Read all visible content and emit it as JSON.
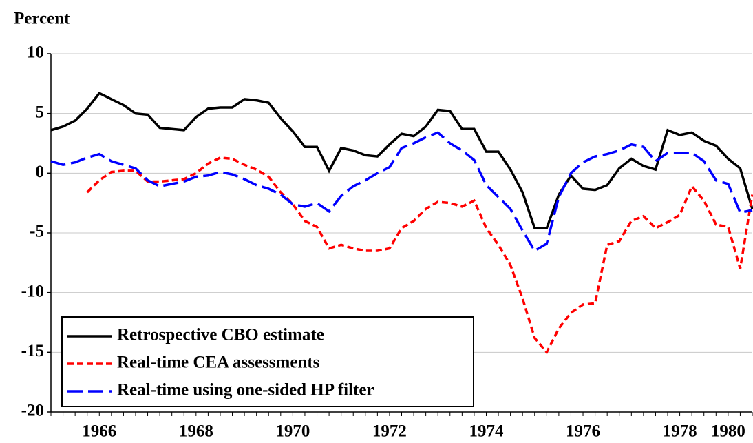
{
  "chart_data": {
    "type": "line",
    "title": "Percent",
    "categories": [
      null,
      null,
      null,
      null,
      "1966",
      null,
      null,
      null,
      null,
      null,
      null,
      null,
      "1968",
      null,
      null,
      null,
      null,
      null,
      null,
      null,
      "1970",
      null,
      null,
      null,
      null,
      null,
      null,
      null,
      "1972",
      null,
      null,
      null,
      null,
      null,
      null,
      null,
      "1974",
      null,
      null,
      null,
      null,
      null,
      null,
      null,
      "1976",
      null,
      null,
      null,
      null,
      null,
      null,
      null,
      "1978",
      null,
      null,
      null,
      "1980",
      null,
      null
    ],
    "series": [
      {
        "name": "Retrospective CBO estimate",
        "color": "#000000",
        "dash": "none",
        "values": [
          3.6,
          3.9,
          4.4,
          5.4,
          6.7,
          6.2,
          5.7,
          5.0,
          4.9,
          3.8,
          3.7,
          3.6,
          4.7,
          5.4,
          5.5,
          5.5,
          6.2,
          6.1,
          5.9,
          4.6,
          3.5,
          2.2,
          2.2,
          0.2,
          2.1,
          1.9,
          1.5,
          1.4,
          2.4,
          3.3,
          3.1,
          3.9,
          5.3,
          5.2,
          3.7,
          3.7,
          1.8,
          1.8,
          0.3,
          -1.6,
          -4.6,
          -4.6,
          -1.8,
          -0.2,
          -1.3,
          -1.4,
          -1.0,
          0.4,
          1.2,
          0.6,
          0.3,
          3.6,
          3.2,
          3.4,
          2.7,
          2.3,
          1.2,
          0.4,
          -3.0
        ]
      },
      {
        "name": "Real-time CEA assessments",
        "color": "#ff0000",
        "dash": "short",
        "values": [
          null,
          null,
          null,
          -1.6,
          -0.6,
          0.1,
          0.2,
          0.2,
          -0.7,
          -0.7,
          -0.6,
          -0.5,
          0.0,
          0.8,
          1.3,
          1.2,
          0.7,
          0.3,
          -0.3,
          -1.6,
          -2.6,
          -4.0,
          -4.5,
          -6.3,
          -6.0,
          -6.3,
          -6.5,
          -6.5,
          -6.3,
          -4.6,
          -4.0,
          -3.0,
          -2.4,
          -2.5,
          -2.8,
          -2.3,
          -4.6,
          -6.0,
          -7.7,
          -10.5,
          -13.8,
          -15.0,
          -13.0,
          -11.7,
          -11.0,
          -10.9,
          -6.0,
          -5.7,
          -4.0,
          -3.6,
          -4.6,
          -4.1,
          -3.5,
          -1.1,
          -2.3,
          -4.3,
          -4.5,
          -8.0,
          -1.8
        ]
      },
      {
        "name": "Real-time using one-sided HP filter",
        "color": "#0000ff",
        "dash": "long",
        "values": [
          1.0,
          0.7,
          0.9,
          1.3,
          1.6,
          1.0,
          0.7,
          0.4,
          -0.6,
          -1.1,
          -0.9,
          -0.7,
          -0.3,
          -0.2,
          0.1,
          -0.1,
          -0.5,
          -1.0,
          -1.3,
          -1.8,
          -2.6,
          -2.8,
          -2.5,
          -3.2,
          -1.9,
          -1.1,
          -0.6,
          0.0,
          0.5,
          2.1,
          2.5,
          3.0,
          3.4,
          2.5,
          1.9,
          1.1,
          -1.0,
          -2.0,
          -3.0,
          -4.8,
          -6.5,
          -5.9,
          -2.0,
          0.0,
          0.9,
          1.4,
          1.6,
          1.9,
          2.4,
          2.2,
          1.0,
          1.7,
          1.7,
          1.7,
          1.0,
          -0.6,
          -0.9,
          -3.3,
          -3.1
        ]
      }
    ],
    "ylim": [
      -20,
      10
    ],
    "yticks": [
      -20,
      -15,
      -10,
      -5,
      0,
      5,
      10
    ],
    "grid": true,
    "legend": "lower left"
  }
}
